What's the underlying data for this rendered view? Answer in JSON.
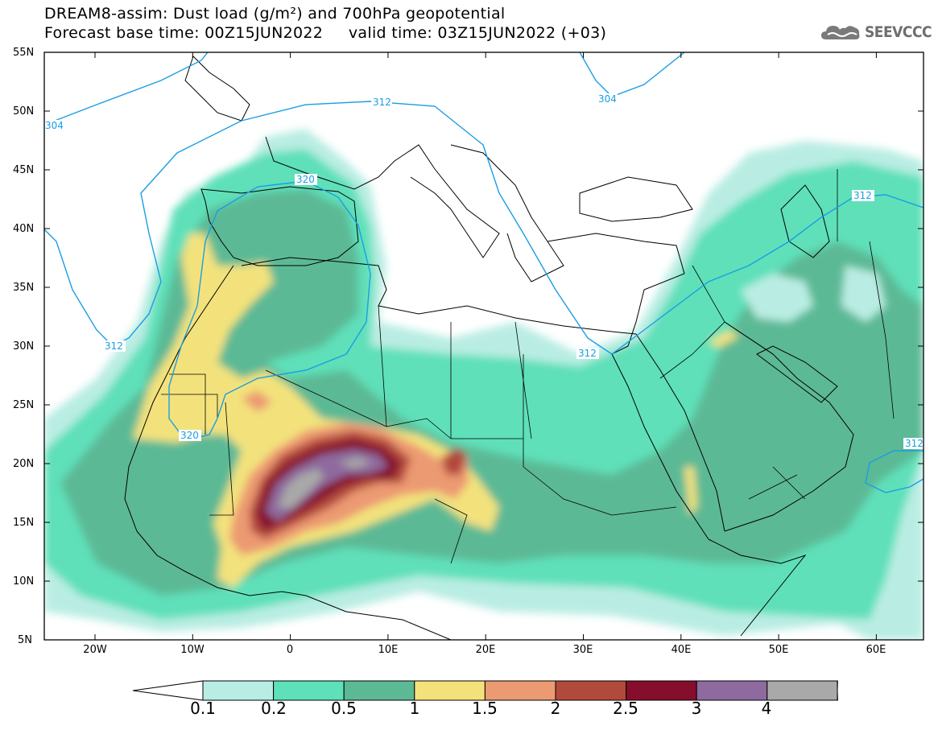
{
  "title": {
    "line1": "DREAM8-assim: Dust load (g/m²) and 700hPa geopotential",
    "line2": "Forecast base time: 00Z15JUN2022     valid time: 03Z15JUN2022 (+03)"
  },
  "logo": {
    "text": "SEEVCCC",
    "icon": "cloud-icon"
  },
  "axes": {
    "lat_labels": [
      "55N",
      "50N",
      "45N",
      "40N",
      "35N",
      "30N",
      "25N",
      "20N",
      "15N",
      "10N",
      "5N"
    ],
    "lon_labels": [
      "20W",
      "10W",
      "0",
      "10E",
      "20E",
      "30E",
      "40E",
      "50E",
      "60E"
    ]
  },
  "contour_labels": [
    "312",
    "304",
    "304",
    "320",
    "312",
    "312",
    "312",
    "320",
    "312",
    "312"
  ],
  "colorbar": {
    "ticks": [
      "0.1",
      "0.2",
      "0.5",
      "1",
      "1.5",
      "2",
      "2.5",
      "3",
      "4"
    ],
    "colors": [
      "#b9ede3",
      "#5ee0b9",
      "#5cb995",
      "#f3e27c",
      "#ec9a72",
      "#b24a3c",
      "#850e2d",
      "#8e6a9f",
      "#a9a9a9"
    ]
  },
  "geopotential_color": "#1a9ee3"
}
